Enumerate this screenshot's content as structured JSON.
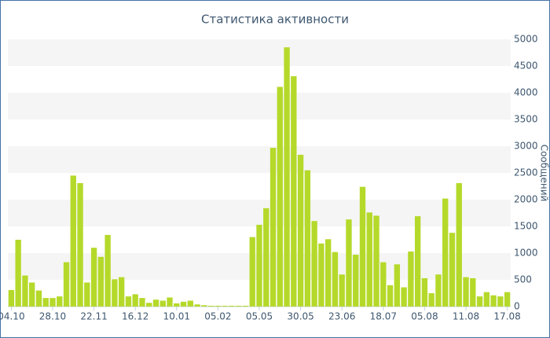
{
  "chart_data": {
    "type": "bar",
    "title": "Статистика активности",
    "y_label": "Сообщений",
    "color": "#b5d92a",
    "grid": true,
    "ylim": [
      0,
      5000
    ],
    "yticks": [
      0,
      500,
      1000,
      1500,
      2000,
      2500,
      3000,
      3500,
      4000,
      4500,
      5000
    ],
    "categories": [
      "04.10",
      null,
      null,
      null,
      null,
      null,
      "28.10",
      null,
      null,
      null,
      null,
      null,
      "22.11",
      null,
      null,
      null,
      null,
      null,
      "16.12",
      null,
      null,
      null,
      null,
      null,
      "10.01",
      null,
      null,
      null,
      null,
      null,
      "05.02",
      null,
      null,
      null,
      null,
      null,
      "05.05",
      null,
      null,
      null,
      null,
      null,
      "30.05",
      null,
      null,
      null,
      null,
      null,
      "23.06",
      null,
      null,
      null,
      null,
      null,
      "18.07",
      null,
      null,
      null,
      null,
      null,
      "05.08",
      null,
      null,
      null,
      null,
      null,
      "11.08",
      null,
      null,
      null,
      null,
      null,
      "17.08"
    ],
    "values": [
      310,
      1250,
      580,
      450,
      300,
      160,
      160,
      190,
      830,
      2450,
      2310,
      450,
      1100,
      930,
      1340,
      510,
      550,
      190,
      230,
      160,
      70,
      130,
      110,
      170,
      60,
      90,
      110,
      40,
      25,
      15,
      15,
      15,
      15,
      15,
      15,
      1300,
      1530,
      1840,
      2970,
      4110,
      4850,
      4310,
      2840,
      2550,
      1600,
      1180,
      1260,
      1020,
      600,
      1630,
      970,
      2240,
      1760,
      1700,
      830,
      400,
      790,
      360,
      1030,
      1690,
      530,
      250,
      600,
      2020,
      1380,
      2310,
      550,
      530,
      190,
      270,
      210,
      190,
      270
    ]
  }
}
